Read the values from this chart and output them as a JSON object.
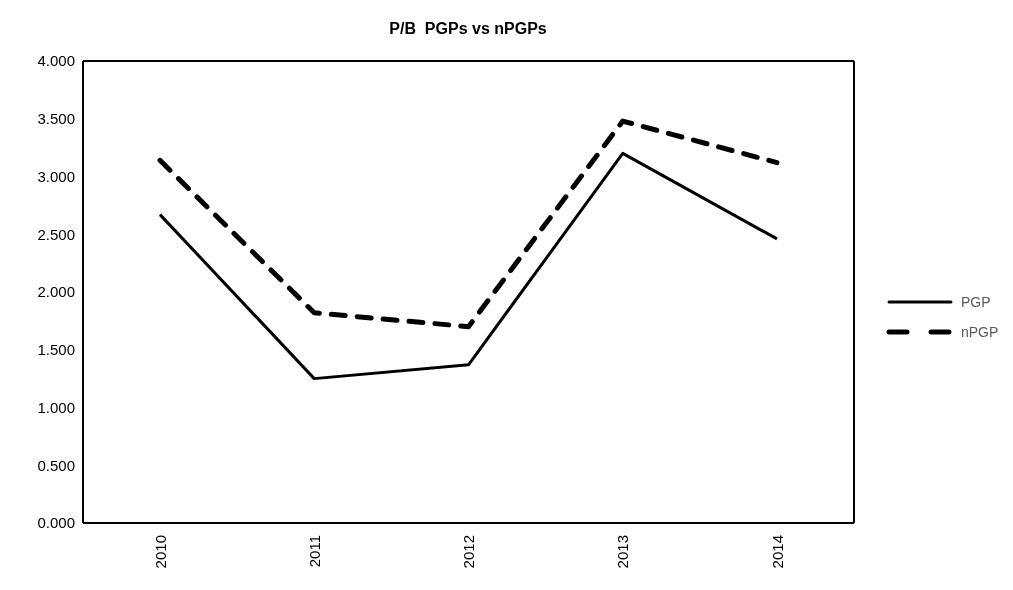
{
  "chart_data": {
    "type": "line",
    "title": "P/B  PGPs vs nPGPs",
    "categories": [
      "2010",
      "2011",
      "2012",
      "2013",
      "2014"
    ],
    "series": [
      {
        "name": "PGP",
        "color": "#000000",
        "values": [
          2.67,
          1.25,
          1.37,
          3.2,
          2.46
        ],
        "line_style": "solid"
      },
      {
        "name": "nPGP",
        "color": "#000000",
        "values": [
          3.14,
          1.82,
          1.7,
          3.48,
          3.12
        ],
        "line_style": "dashed"
      }
    ],
    "ylim": [
      0,
      4
    ],
    "yticks": [
      {
        "value": 0,
        "label": "0.000"
      },
      {
        "value": 0.5,
        "label": "0.500"
      },
      {
        "value": 1,
        "label": "1.000"
      },
      {
        "value": 1.5,
        "label": "1.500"
      },
      {
        "value": 2,
        "label": "2.000"
      },
      {
        "value": 2.5,
        "label": "2.500"
      },
      {
        "value": 3,
        "label": "3.000"
      },
      {
        "value": 3.5,
        "label": "3.500"
      },
      {
        "value": 4,
        "label": "4.000"
      }
    ],
    "grid": false,
    "legend": "right",
    "marker": "none"
  }
}
